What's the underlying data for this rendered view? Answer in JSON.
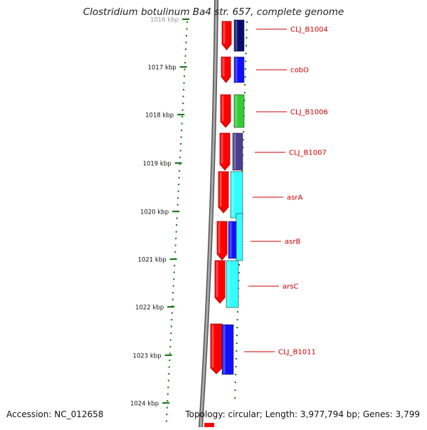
{
  "title": "Clostridium botulinum Ba4 str. 657, complete genome",
  "accession": "Accession: NC_012658",
  "summary": "Topology: circular; Length: 3,977,794 bp; Genes: 3,799",
  "ticks": [
    "1016 kbp",
    "1017 kbp",
    "1018 kbp",
    "1019 kbp",
    "1020 kbp",
    "1021 kbp",
    "1022 kbp",
    "1023 kbp",
    "1024 kbp"
  ],
  "genes": [
    {
      "label": "CLJ_B1004",
      "color": "#0a0a6e"
    },
    {
      "label": "cobO",
      "color": "#1010ff"
    },
    {
      "label": "CLJ_B1006",
      "color": "#33cc33"
    },
    {
      "label": "CLJ_B1007",
      "color": "#4a3f8f"
    },
    {
      "label": "asrA",
      "color": "#33ffff"
    },
    {
      "label": "asrB",
      "color": "#1010ff"
    },
    {
      "label": "arsC",
      "color": "#33ffff"
    },
    {
      "label": "CLJ_B1011",
      "color": "#1010ff"
    }
  ],
  "colors": {
    "strand_forward": "#ff0000",
    "tick": "#1a7a1a",
    "label": "#cc0000",
    "backbone": "#8c8c8c"
  }
}
